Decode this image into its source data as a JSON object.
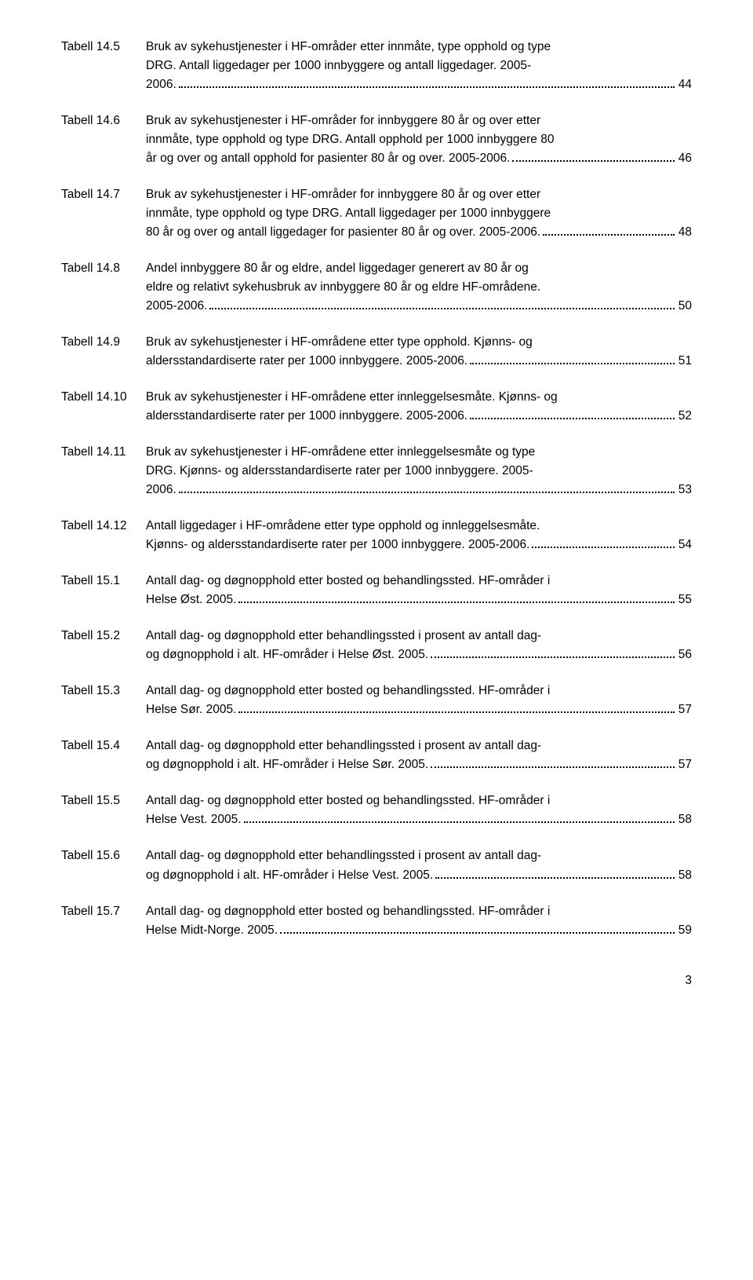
{
  "entries": [
    {
      "label": "Tabell 14.5",
      "lines": [
        "Bruk av sykehustjenester i HF-områder etter innmåte, type opphold og type",
        "DRG. Antall liggedager per 1000 innbyggere og antall liggedager. 2005-"
      ],
      "last_pre": "2006.",
      "page": "44"
    },
    {
      "label": "Tabell 14.6",
      "lines": [
        "Bruk av sykehustjenester i HF-områder for innbyggere 80 år og over etter",
        "innmåte, type opphold og type DRG. Antall opphold per 1000 innbyggere 80"
      ],
      "last_pre": "år og over og antall opphold for pasienter 80 år og over. 2005-2006.",
      "page": "46"
    },
    {
      "label": "Tabell 14.7",
      "lines": [
        "Bruk av sykehustjenester i HF-områder for innbyggere 80 år og over etter",
        "innmåte, type opphold og type DRG. Antall liggedager per 1000 innbyggere"
      ],
      "last_pre": "80 år og over og antall liggedager for pasienter 80 år og over. 2005-2006.",
      "page": "48"
    },
    {
      "label": "Tabell 14.8",
      "lines": [
        "Andel innbyggere 80 år og eldre, andel liggedager generert av 80 år og",
        "eldre og relativt sykehusbruk av innbyggere 80 år og eldre HF-områdene."
      ],
      "last_pre": "2005-2006.",
      "page": "50"
    },
    {
      "label": "Tabell 14.9",
      "lines": [
        "Bruk av sykehustjenester i HF-områdene etter type opphold. Kjønns- og"
      ],
      "last_pre": "aldersstandardiserte rater per 1000 innbyggere. 2005-2006.",
      "page": "51"
    },
    {
      "label": "Tabell 14.10",
      "lines": [
        "Bruk av sykehustjenester i HF-områdene etter innleggelsesmåte. Kjønns- og"
      ],
      "last_pre": "aldersstandardiserte rater per 1000 innbyggere. 2005-2006.",
      "page": "52"
    },
    {
      "label": "Tabell 14.11",
      "lines": [
        "Bruk av sykehustjenester i HF-områdene etter innleggelsesmåte og type",
        "DRG. Kjønns- og aldersstandardiserte rater per 1000 innbyggere. 2005-"
      ],
      "last_pre": "2006.",
      "page": "53"
    },
    {
      "label": "Tabell 14.12",
      "lines": [
        "Antall liggedager i HF-områdene etter type opphold og innleggelsesmåte."
      ],
      "last_pre": "Kjønns- og aldersstandardiserte rater per 1000 innbyggere. 2005-2006.",
      "page": "54"
    },
    {
      "label": "Tabell 15.1",
      "lines": [
        "Antall dag- og døgnopphold etter bosted og behandlingssted. HF-områder i"
      ],
      "last_pre": "Helse Øst. 2005.",
      "page": "55"
    },
    {
      "label": "Tabell 15.2",
      "lines": [
        "Antall dag- og døgnopphold etter behandlingssted i prosent av antall dag-"
      ],
      "last_pre": "og døgnopphold i alt. HF-områder i Helse Øst. 2005.",
      "page": "56"
    },
    {
      "label": "Tabell 15.3",
      "lines": [
        "Antall dag- og døgnopphold etter bosted og behandlingssted. HF-områder i"
      ],
      "last_pre": "Helse Sør. 2005.",
      "page": "57"
    },
    {
      "label": "Tabell 15.4",
      "lines": [
        "Antall dag- og døgnopphold etter behandlingssted i prosent av antall dag-"
      ],
      "last_pre": "og døgnopphold i alt. HF-områder i Helse Sør. 2005.",
      "page": "57"
    },
    {
      "label": "Tabell 15.5",
      "lines": [
        "Antall dag- og døgnopphold etter bosted og behandlingssted. HF-områder i"
      ],
      "last_pre": "Helse Vest. 2005.",
      "page": "58"
    },
    {
      "label": "Tabell 15.6",
      "lines": [
        "Antall dag- og døgnopphold etter behandlingssted i prosent av antall dag-"
      ],
      "last_pre": "og døgnopphold i alt. HF-områder i Helse Vest. 2005.",
      "page": "58"
    },
    {
      "label": "Tabell 15.7",
      "lines": [
        "Antall dag- og døgnopphold etter bosted og behandlingssted. HF-områder i"
      ],
      "last_pre": "Helse Midt-Norge. 2005.",
      "page": "59"
    }
  ],
  "footer_page": "3"
}
